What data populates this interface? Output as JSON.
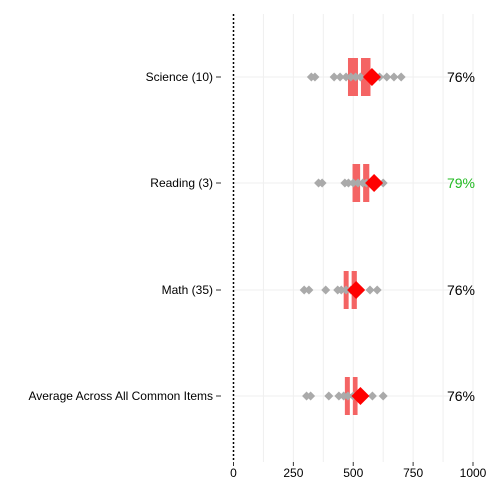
{
  "chart_data": {
    "type": "dot-box",
    "title": "",
    "xlabel": "",
    "ylabel": "",
    "xlim": [
      0,
      1000
    ],
    "x_ticks": [
      0,
      250,
      500,
      750,
      1000
    ],
    "grid": true,
    "highlight_color": "#ff0000",
    "box_color": "#f46464",
    "dot_color": "#aaaaaa",
    "pct_default_color": "#000000",
    "pct_highlight_color": "#22bb22",
    "rows": [
      {
        "label": "Science (10)",
        "box": [
          478,
          572
        ],
        "median": 526,
        "marker": 578,
        "points": [
          325,
          340,
          420,
          445,
          470,
          490,
          510,
          530,
          560,
          590,
          610,
          640,
          670,
          700
        ],
        "pct": "76%",
        "pct_highlight": false
      },
      {
        "label": "Reading (3)",
        "box": [
          497,
          567
        ],
        "median": 535,
        "marker": 587,
        "points": [
          355,
          370,
          465,
          480,
          500,
          520,
          540,
          555,
          575,
          600,
          625
        ],
        "pct": "79%",
        "pct_highlight": true
      },
      {
        "label": "Math (35)",
        "box": [
          460,
          515
        ],
        "median": 487,
        "marker": 512,
        "points": [
          295,
          315,
          385,
          435,
          450,
          470,
          490,
          505,
          530,
          570,
          600
        ],
        "pct": "76%",
        "pct_highlight": false
      },
      {
        "label": "Average Across All Common Items",
        "box": [
          465,
          518
        ],
        "median": 492,
        "marker": 530,
        "points": [
          305,
          322,
          398,
          440,
          460,
          478,
          500,
          520,
          545,
          580,
          625
        ],
        "pct": "76%",
        "pct_highlight": false
      }
    ]
  }
}
